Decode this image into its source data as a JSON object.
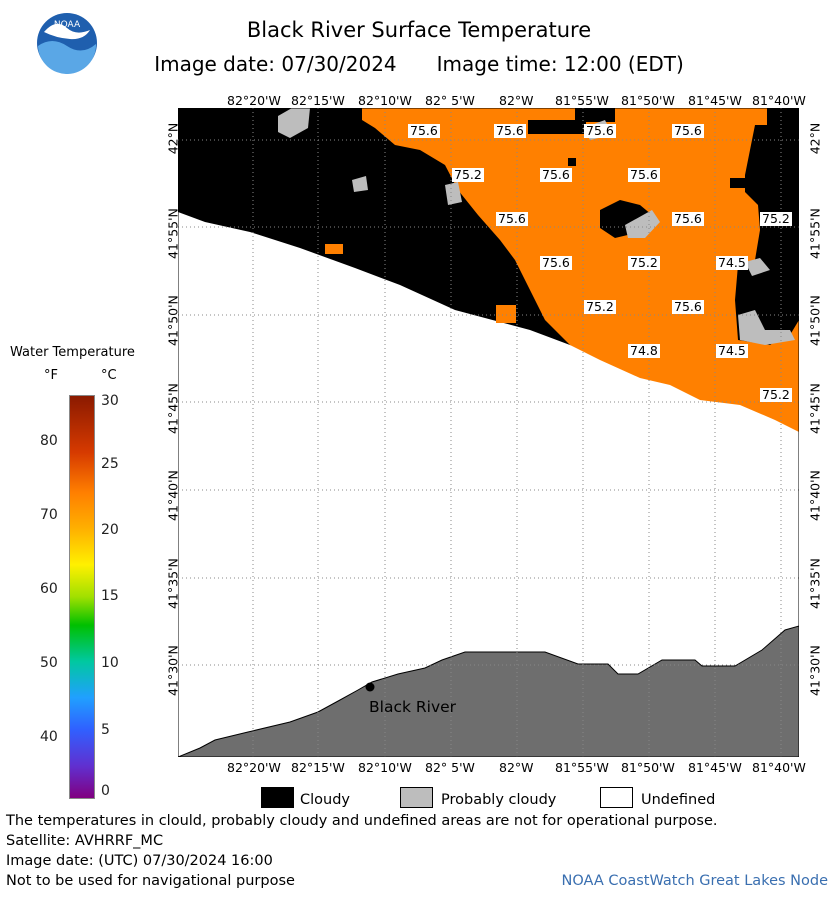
{
  "header": {
    "title": "Black River Surface Temperature",
    "image_date": "Image date: 07/30/2024",
    "image_time": "Image time: 12:00 (EDT)",
    "logo_text": "NOAA"
  },
  "map": {
    "longitude_labels": [
      "82°20'W",
      "82°15'W",
      "82°10'W",
      "82° 5'W",
      "82°W",
      "81°55'W",
      "81°50'W",
      "81°45'W",
      "81°40'W"
    ],
    "latitude_labels": [
      "42°N",
      "41°55'N",
      "41°50'N",
      "41°45'N",
      "41°40'N",
      "41°35'N",
      "41°30'N"
    ],
    "temperature_labels": [
      "75.6",
      "75.6",
      "75.6",
      "75.6",
      "75.2",
      "75.6",
      "75.6",
      "75.6",
      "75.6",
      "75.2",
      "75.6",
      "75.2",
      "74.5",
      "75.2",
      "75.6",
      "74.8",
      "74.5",
      "75.2"
    ],
    "place_label": "Black River",
    "colors": {
      "water_sst": "#ff8000",
      "cloudy": "#000000",
      "probably_cloudy": "#bdbdbd",
      "land": "#6e6e6e",
      "undefined": "#ffffff",
      "gridline": "#888888"
    }
  },
  "legend": {
    "title": "Water Temperature",
    "unit_f": "°F",
    "unit_c": "°C",
    "fahrenheit_ticks": [
      "80",
      "70",
      "60",
      "50",
      "40"
    ],
    "celsius_ticks": [
      "30",
      "25",
      "20",
      "15",
      "10",
      "5",
      "0"
    ]
  },
  "key": {
    "cloudy": "Cloudy",
    "probably_cloudy": "Probably cloudy",
    "undefined": "Undefined"
  },
  "footer": {
    "disclaimer": "The temperatures in clould, probably cloudy and undefined areas are not for operational purpose.",
    "satellite": "Satellite: AVHRRF_MC",
    "utc_date": "Image date: (UTC) 07/30/2024  16:00",
    "nav_warning": "Not to be used for navigational purpose",
    "credit": "NOAA CoastWatch Great Lakes Node"
  }
}
